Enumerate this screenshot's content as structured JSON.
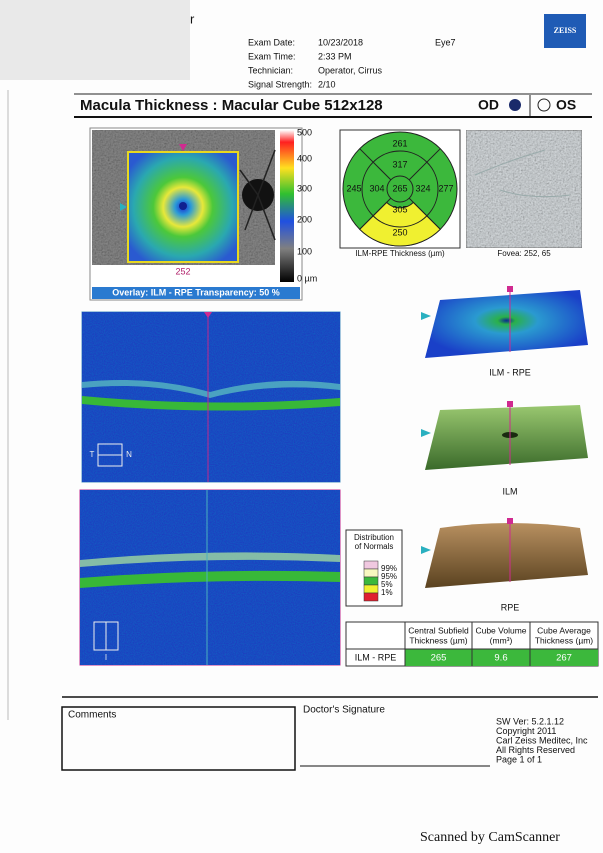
{
  "header": {
    "corner": "r",
    "fields": [
      {
        "label": "Exam Date:",
        "value": "10/23/2018"
      },
      {
        "label": "Exam Time:",
        "value": "2:33 PM"
      },
      {
        "label": "Technician:",
        "value": "Operator, Cirrus"
      },
      {
        "label": "Signal Strength:",
        "value": "2/10"
      }
    ],
    "eye": "Eye7",
    "logo": "ZEISS"
  },
  "title": {
    "text": "Macula Thickness : Macular Cube 512x128",
    "od": "OD",
    "os": "OS"
  },
  "thickness_map": {
    "scale": [
      "500",
      "400",
      "300",
      "200",
      "100",
      "0 µm"
    ],
    "marker": "252",
    "caption": "Overlay: ILM - RPE  Transparency: 50 %"
  },
  "etdrs": {
    "center": "265",
    "inner": {
      "superior": "317",
      "temporal": "304",
      "nasal": "324",
      "inferior": "305"
    },
    "outer": {
      "superior": "261",
      "temporal": "245",
      "nasal": "277",
      "inferior": "250"
    },
    "caption": "ILM-RPE Thickness (µm)"
  },
  "fundus": {
    "caption": "Fovea: 252, 65"
  },
  "bscans": {
    "first": [
      "T",
      "N"
    ],
    "second": [
      "I"
    ]
  },
  "surfaces": [
    "ILM - RPE",
    "ILM",
    "RPE"
  ],
  "normals": {
    "title": [
      "Distribution",
      "of Normals"
    ],
    "levels": [
      "99%",
      "95%",
      "5%",
      "1%"
    ]
  },
  "table": {
    "headers": [
      [
        "Central Subfield",
        "Thickness (µm)"
      ],
      [
        "Cube Volume",
        "(mm³)"
      ],
      [
        "Cube Average",
        "Thickness (µm)"
      ]
    ],
    "rows": [
      [
        "ILM - RPE",
        "265",
        "9.6",
        "267"
      ]
    ]
  },
  "footer": {
    "comments": "Comments",
    "signature": "Doctor's Signature",
    "info": [
      "SW Ver: 5.2.1.12",
      "Copyright 2011",
      "Carl Zeiss Meditec, Inc",
      "All Rights Reserved",
      "Page 1 of 1"
    ]
  },
  "watermark": "Scanned by CamScanner"
}
